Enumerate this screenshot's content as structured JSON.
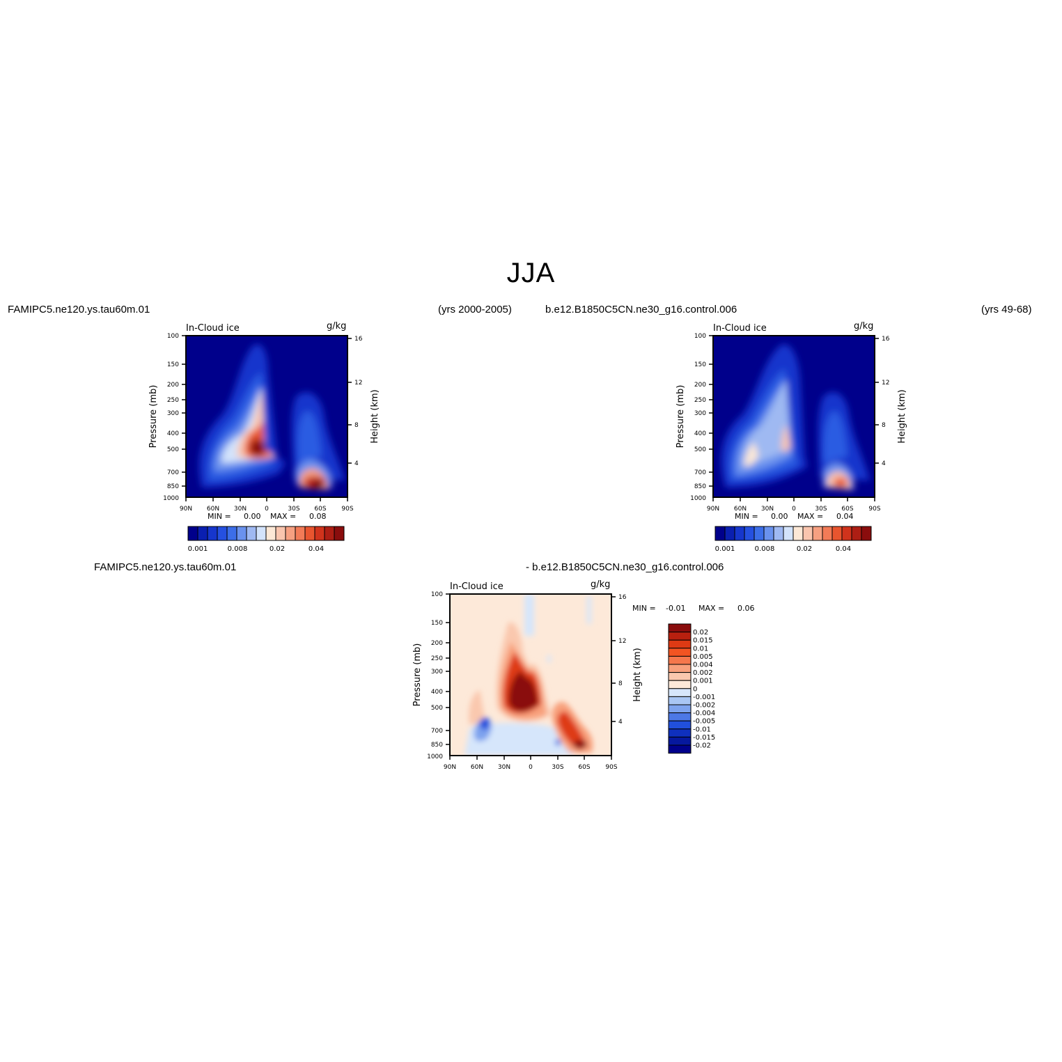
{
  "figure": {
    "title": "JJA"
  },
  "panels": {
    "left": {
      "case_name": "FAMIPC5.ne120.ys.tau60m.01",
      "years": "(yrs 2000-2005)",
      "var_label": "In-Cloud ice",
      "units": "g/kg",
      "min_label": "MIN =",
      "min_value": "0.00",
      "max_label": "MAX =",
      "max_value": "0.08"
    },
    "right": {
      "case_name": "b.e12.B1850C5CN.ne30_g16.control.006",
      "years": "(yrs 49-68)",
      "var_label": "In-Cloud ice",
      "units": "g/kg",
      "min_label": "MIN =",
      "min_value": "0.00",
      "max_label": "MAX =",
      "max_value": "0.04"
    },
    "diff": {
      "case_a": "FAMIPC5.ne120.ys.tau60m.01",
      "case_b": "- b.e12.B1850C5CN.ne30_g16.control.006",
      "var_label": "In-Cloud ice",
      "units": "g/kg",
      "min_label": "MIN =",
      "min_value": "-0.01",
      "max_label": "MAX =",
      "max_value": "0.06"
    }
  },
  "axes": {
    "pressure_label": "Pressure (mb)",
    "height_label": "Height (km)",
    "pressure_ticks": [
      "100",
      "150",
      "200",
      "250",
      "300",
      "400",
      "500",
      "700",
      "850",
      "1000"
    ],
    "height_ticks": [
      "16",
      "12",
      "8",
      "4"
    ],
    "lat_ticks": [
      "90N",
      "60N",
      "30N",
      "0",
      "30S",
      "60S",
      "90S"
    ]
  },
  "colorbars": {
    "abs_labels": [
      "0.001",
      "0.008",
      "0.02",
      "0.04"
    ],
    "abs_colors": [
      "#00008b",
      "#0a1fb0",
      "#1636cc",
      "#2550e0",
      "#3c6ee8",
      "#6a92ee",
      "#9fb9f2",
      "#d3e3fb",
      "#fce8d6",
      "#f9c5ae",
      "#f6a081",
      "#f27b57",
      "#e8552f",
      "#d0331c",
      "#ad1e14",
      "#8a0d0d"
    ],
    "diff_labels": [
      "0.02",
      "0.015",
      "0.01",
      "0.005",
      "0.004",
      "0.002",
      "0.001",
      "0",
      "-0.001",
      "-0.002",
      "-0.004",
      "-0.005",
      "-0.01",
      "-0.015",
      "-0.02"
    ],
    "diff_colors": [
      "#8a0d0d",
      "#b8200f",
      "#de3a14",
      "#f25422",
      "#f5774c",
      "#f8a07c",
      "#fac8ae",
      "#fde9d9",
      "#d6e6fb",
      "#a9c6f4",
      "#7ea3ee",
      "#4d78e6",
      "#2150dc",
      "#0f30be",
      "#06189e",
      "#00008b"
    ]
  }
}
